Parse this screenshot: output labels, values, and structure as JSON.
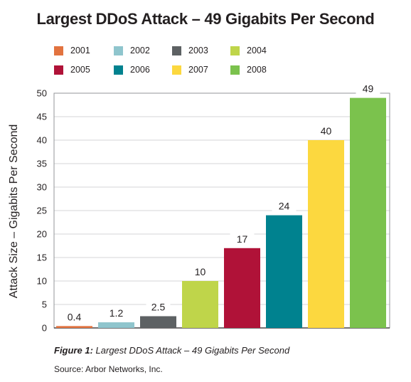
{
  "chart_data": {
    "type": "bar",
    "title": "Largest DDoS Attack – 49 Gigabits Per Second",
    "ylabel": "Attack Size – Gigabits Per Second",
    "xlabel": "",
    "categories": [
      "2001",
      "2002",
      "2003",
      "2004",
      "2005",
      "2006",
      "2007",
      "2008"
    ],
    "values": [
      0.4,
      1.2,
      2.5,
      10,
      17,
      24,
      40,
      49
    ],
    "value_labels": [
      "0.4",
      "1.2",
      "2.5",
      "10",
      "17",
      "24",
      "40",
      "49"
    ],
    "colors": [
      "#e2733f",
      "#8fc5cd",
      "#5d6163",
      "#bfd54a",
      "#b01238",
      "#00828f",
      "#fcd83f",
      "#7bc24d"
    ],
    "ylim": [
      0,
      50
    ],
    "yticks": [
      "0",
      "5",
      "10",
      "15",
      "20",
      "25",
      "30",
      "35",
      "40",
      "45",
      "50"
    ],
    "grid": true,
    "legend_position": "top-left"
  },
  "caption": {
    "prefix": "Figure 1:",
    "text": "Largest DDoS Attack – 49 Gigabits Per Second"
  },
  "source": "Source: Arbor Networks, Inc."
}
